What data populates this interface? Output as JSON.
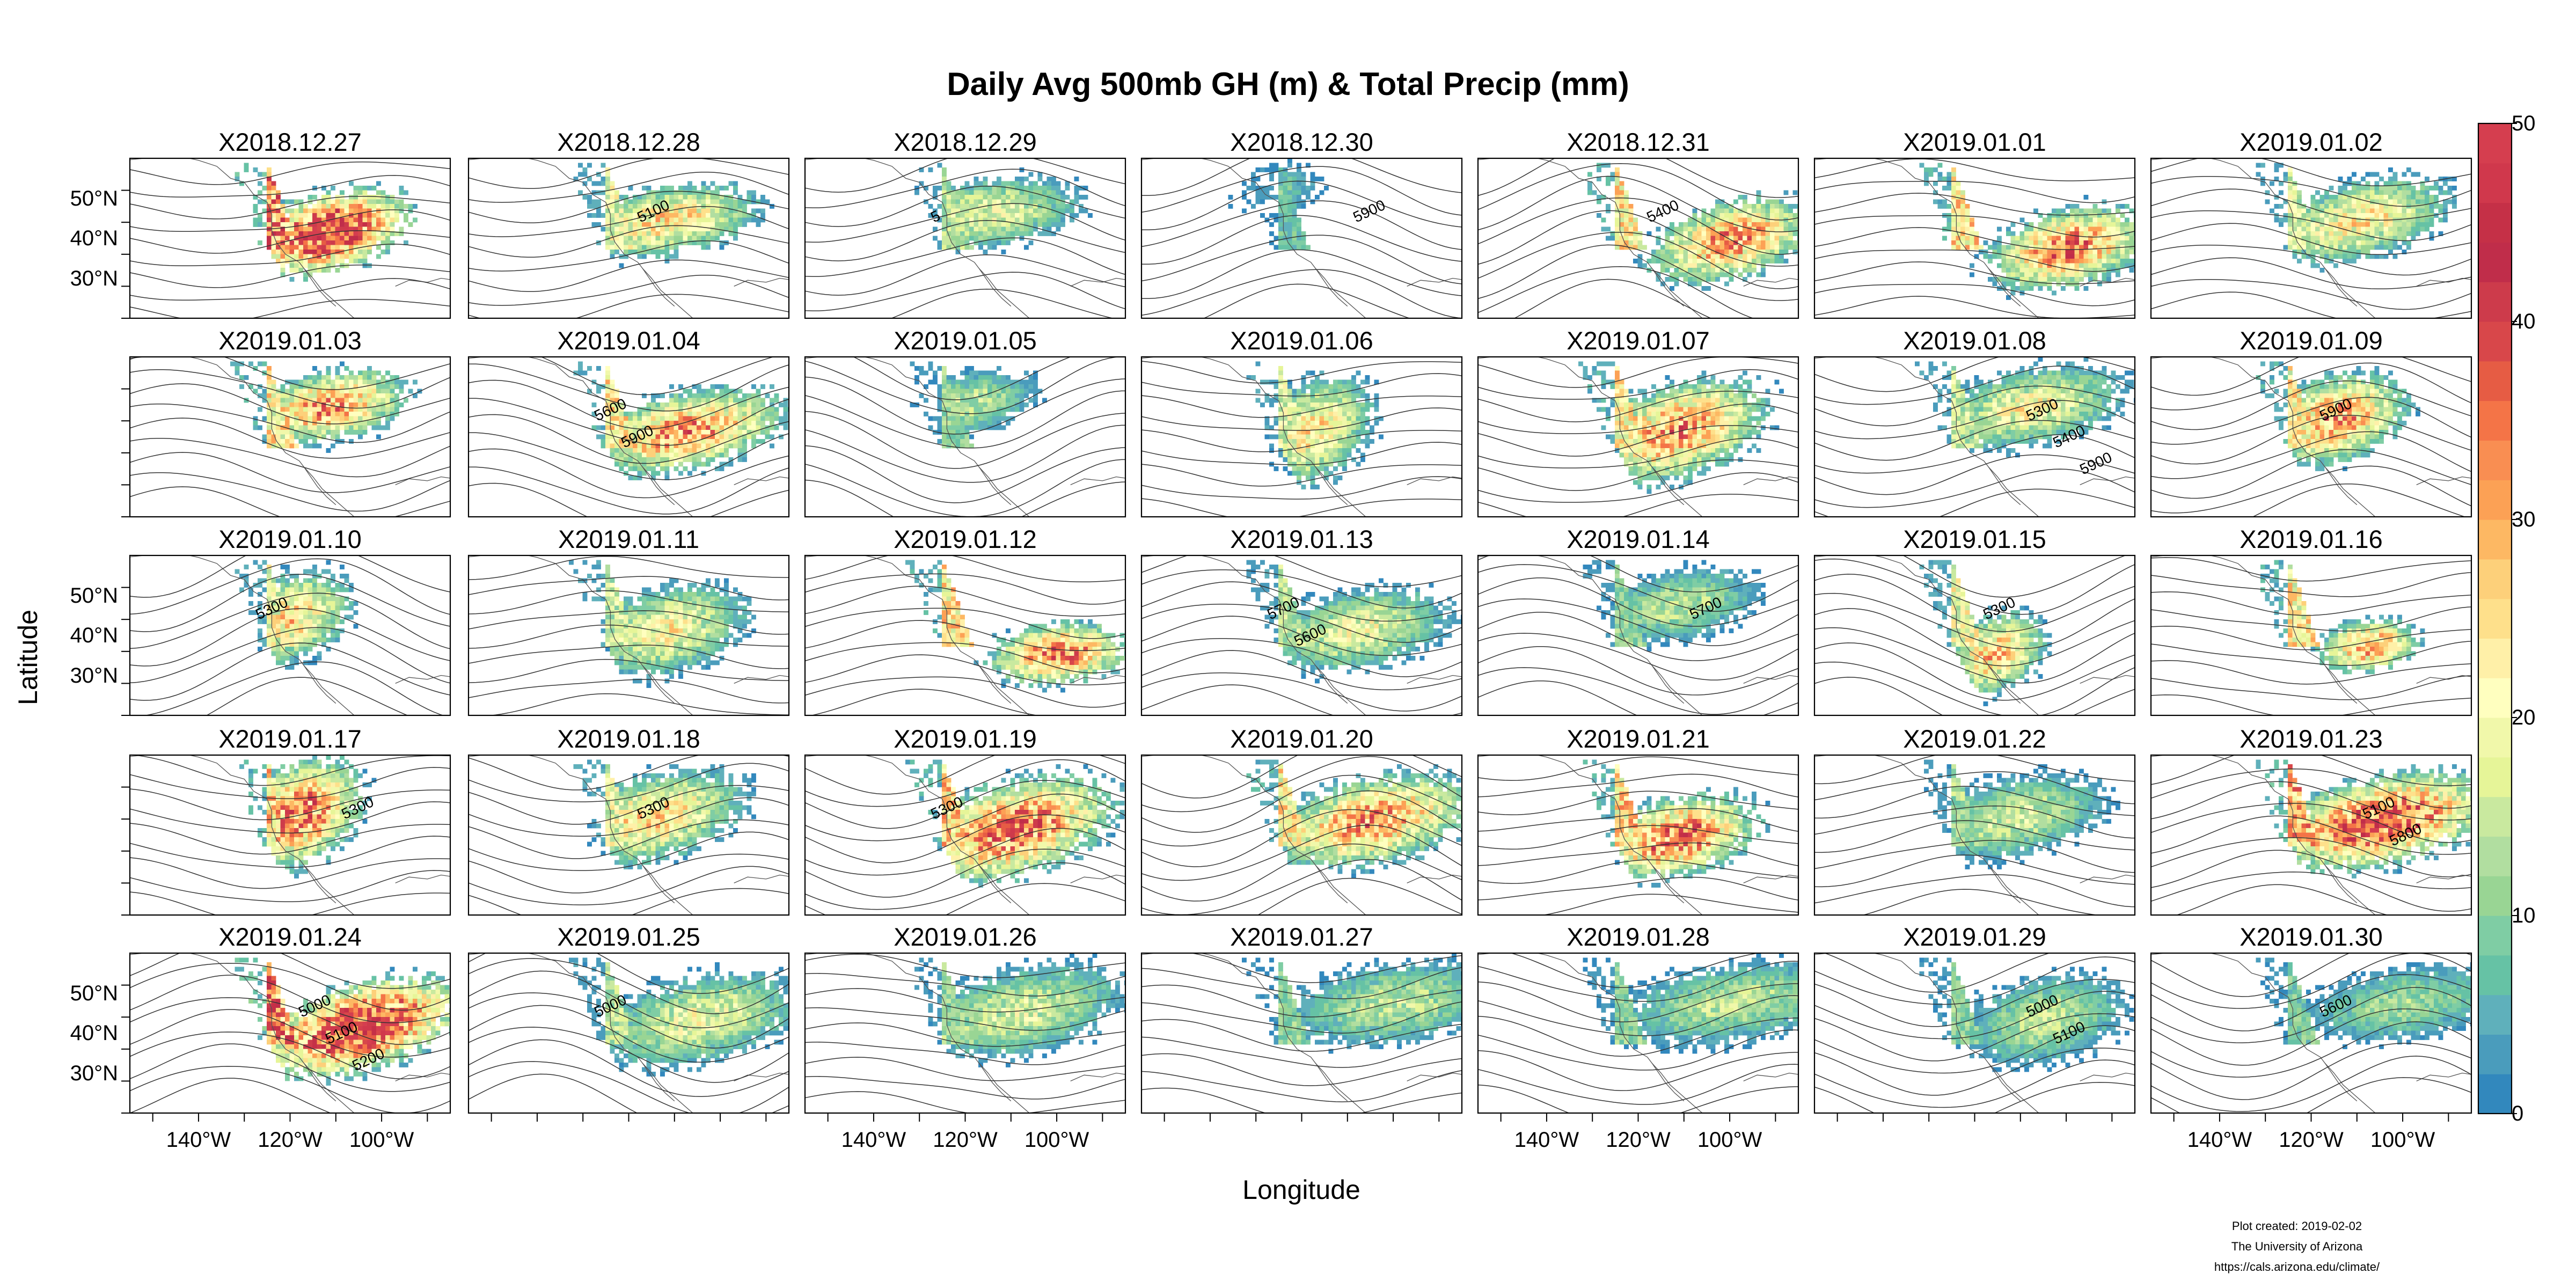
{
  "figure": {
    "title": "Daily Avg 500mb GH (m) & Total Precip (mm)",
    "xlabel": "Longitude",
    "ylabel": "Latitude",
    "panel_type": "map",
    "layout": "7 columns x 5 rows",
    "panels": [
      "X2018.12.27",
      "X2018.12.28",
      "X2018.12.29",
      "X2018.12.30",
      "X2018.12.31",
      "X2019.01.01",
      "X2019.01.02",
      "X2019.01.03",
      "X2019.01.04",
      "X2019.01.05",
      "X2019.01.06",
      "X2019.01.07",
      "X2019.01.08",
      "X2019.01.09",
      "X2019.01.10",
      "X2019.01.11",
      "X2019.01.12",
      "X2019.01.13",
      "X2019.01.14",
      "X2019.01.15",
      "X2019.01.16",
      "X2019.01.17",
      "X2019.01.18",
      "X2019.01.19",
      "X2019.01.20",
      "X2019.01.21",
      "X2019.01.22",
      "X2019.01.23",
      "X2019.01.24",
      "X2019.01.25",
      "X2019.01.26",
      "X2019.01.27",
      "X2019.01.28",
      "X2019.01.29",
      "X2019.01.30"
    ],
    "lat_ticks": [
      "50°N",
      "40°N",
      "30°N"
    ],
    "lat_tick_values": [
      50,
      40,
      30
    ],
    "lat_range": [
      20,
      60
    ],
    "lon_ticks": [
      "140°W",
      "120°W",
      "100°W"
    ],
    "lon_tick_values": [
      -140,
      -120,
      -100
    ],
    "lon_range": [
      -155,
      -85
    ],
    "colorbar": {
      "ticks": [
        "0",
        "10",
        "20",
        "30",
        "40",
        "50"
      ],
      "range": [
        0,
        50
      ],
      "step": 2,
      "colors": [
        "#3288bd",
        "#4a9cbc",
        "#5fb0bb",
        "#66c2a5",
        "#7fcda4",
        "#99d594",
        "#b1dea0",
        "#c9e99f",
        "#e6f598",
        "#f1f8aa",
        "#ffffbf",
        "#fff0a8",
        "#fee08b",
        "#fdd07a",
        "#fdb863",
        "#fca155",
        "#f98e52",
        "#f47447",
        "#e65c44",
        "#d8474a",
        "#cd3b4b",
        "#c02d4a",
        "#c53047",
        "#d0384c",
        "#d53e4f"
      ]
    },
    "contour_labels": [
      {
        "panel": "X2018.12.28",
        "text": "5100"
      },
      {
        "panel": "X2018.12.29",
        "text": "5"
      },
      {
        "panel": "X2018.12.30",
        "text": "5900"
      },
      {
        "panel": "X2018.12.31",
        "text": "5400"
      },
      {
        "panel": "X2019.01.04",
        "text": "5600"
      },
      {
        "panel": "X2019.01.04",
        "text": "5900"
      },
      {
        "panel": "X2019.01.08",
        "text": "5300"
      },
      {
        "panel": "X2019.01.08",
        "text": "5400"
      },
      {
        "panel": "X2019.01.08",
        "text": "5900"
      },
      {
        "panel": "X2019.01.09",
        "text": "5900"
      },
      {
        "panel": "X2019.01.10",
        "text": "5300"
      },
      {
        "panel": "X2019.01.13",
        "text": "5700"
      },
      {
        "panel": "X2019.01.13",
        "text": "5600"
      },
      {
        "panel": "X2019.01.14",
        "text": "5700"
      },
      {
        "panel": "X2019.01.15",
        "text": "5300"
      },
      {
        "panel": "X2019.01.17",
        "text": "5300"
      },
      {
        "panel": "X2019.01.18",
        "text": "5300"
      },
      {
        "panel": "X2019.01.19",
        "text": "5300"
      },
      {
        "panel": "X2019.01.23",
        "text": "5100"
      },
      {
        "panel": "X2019.01.23",
        "text": "5800"
      },
      {
        "panel": "X2019.01.24",
        "text": "5000"
      },
      {
        "panel": "X2019.01.24",
        "text": "5100"
      },
      {
        "panel": "X2019.01.24",
        "text": "5200"
      },
      {
        "panel": "X2019.01.25",
        "text": "5000"
      },
      {
        "panel": "X2019.01.29",
        "text": "5000"
      },
      {
        "panel": "X2019.01.29",
        "text": "5100"
      },
      {
        "panel": "X2019.01.30",
        "text": "5600"
      }
    ]
  },
  "credits": {
    "line1": "Plot created: 2019-02-02",
    "line2": "The University of Arizona",
    "line3": "https://cals.arizona.edu/climate/"
  }
}
